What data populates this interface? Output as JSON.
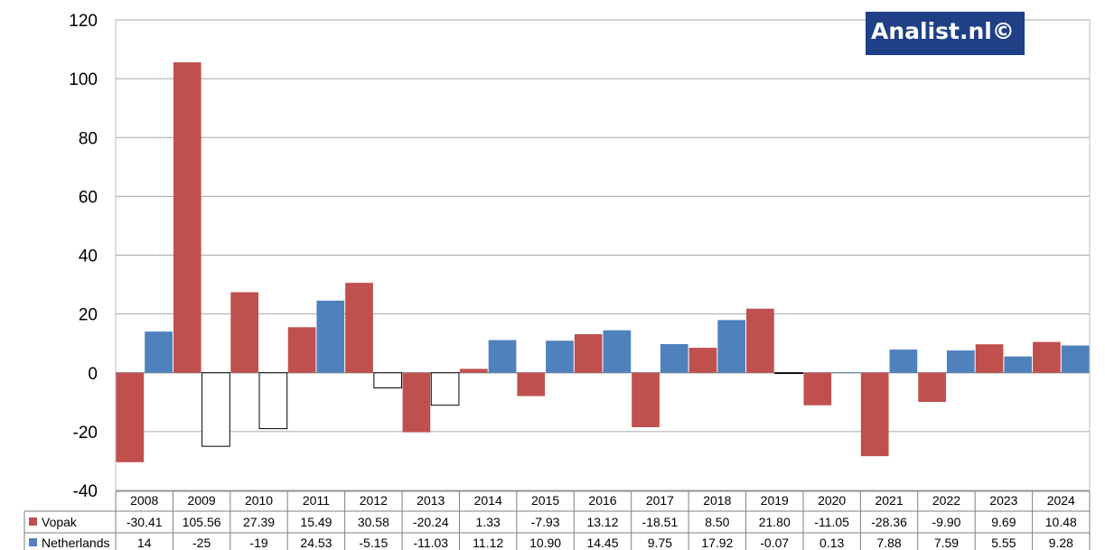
{
  "chart_data": {
    "type": "bar",
    "categories": [
      "2008",
      "2009",
      "2010",
      "2011",
      "2012",
      "2013",
      "2014",
      "2015",
      "2016",
      "2017",
      "2018",
      "2019",
      "2020",
      "2021",
      "2022",
      "2023",
      "2024"
    ],
    "series": [
      {
        "name": "Vopak",
        "color": "#c0504d",
        "values": [
          -30.41,
          105.56,
          27.39,
          15.49,
          30.58,
          -20.24,
          1.33,
          -7.93,
          13.12,
          -18.51,
          8.5,
          21.8,
          -11.05,
          -28.36,
          -9.9,
          9.69,
          10.48
        ],
        "labels": [
          "-30.41",
          "105.56",
          "27.39",
          "15.49",
          "30.58",
          "-20.24",
          "1.33",
          "-7.93",
          "13.12",
          "-18.51",
          "8.50",
          "21.80",
          "-11.05",
          "-28.36",
          "-9.90",
          "9.69",
          "10.48"
        ]
      },
      {
        "name": "Netherlands",
        "color": "#4f81bd",
        "values": [
          14,
          -25,
          -19,
          24.53,
          -5.15,
          -11.03,
          11.12,
          10.9,
          14.45,
          9.75,
          17.92,
          -0.07,
          0.13,
          7.88,
          7.59,
          5.55,
          9.28
        ],
        "labels": [
          "14",
          "-25",
          "-19",
          "24.53",
          "-5.15",
          "-11.03",
          "11.12",
          "10.90",
          "14.45",
          "9.75",
          "17.92",
          "-0.07",
          "0.13",
          "7.88",
          "7.59",
          "5.55",
          "9.28"
        ],
        "negative_fill": "#ffffff"
      }
    ],
    "ylim": [
      -40,
      120
    ],
    "yticks": [
      "120",
      "100",
      "80",
      "60",
      "40",
      "20",
      "0",
      "-20",
      "-40"
    ],
    "grid": true,
    "legend": "data-table"
  },
  "branding": {
    "text": "Analist.nl©"
  }
}
